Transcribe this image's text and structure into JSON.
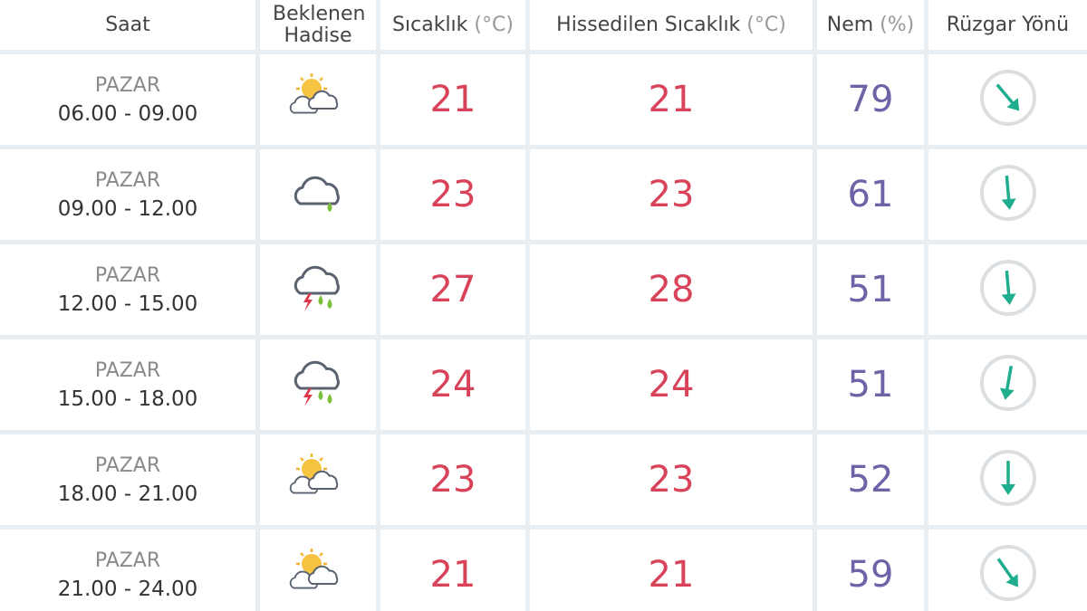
{
  "header": {
    "columns": [
      {
        "label": "Saat"
      },
      {
        "label": "Beklenen Hadise"
      },
      {
        "label": "Sıcaklık",
        "unit": "(°C)"
      },
      {
        "label": "Hissedilen Sıcaklık",
        "unit": "(°C)"
      },
      {
        "label": "Nem",
        "unit": "(%)"
      },
      {
        "label": "Rüzgar Yönü"
      }
    ]
  },
  "table": {
    "rows": [
      {
        "day": "PAZAR",
        "time": "06.00 - 09.00",
        "temperature": 21,
        "feels_like": 21,
        "humidity": 79
      },
      {
        "day": "PAZAR",
        "time": "09.00 - 12.00",
        "temperature": 23,
        "feels_like": 23,
        "humidity": 61
      },
      {
        "day": "PAZAR",
        "time": "12.00 - 15.00",
        "temperature": 27,
        "feels_like": 28,
        "humidity": 51
      },
      {
        "day": "PAZAR",
        "time": "15.00 - 18.00",
        "temperature": 24,
        "feels_like": 24,
        "humidity": 51
      },
      {
        "day": "PAZAR",
        "time": "18.00 - 21.00",
        "temperature": 23,
        "feels_like": 23,
        "humidity": 52
      },
      {
        "day": "PAZAR",
        "time": "21.00 - 24.00",
        "temperature": 21,
        "feels_like": 21,
        "humidity": 59
      }
    ]
  }
}
